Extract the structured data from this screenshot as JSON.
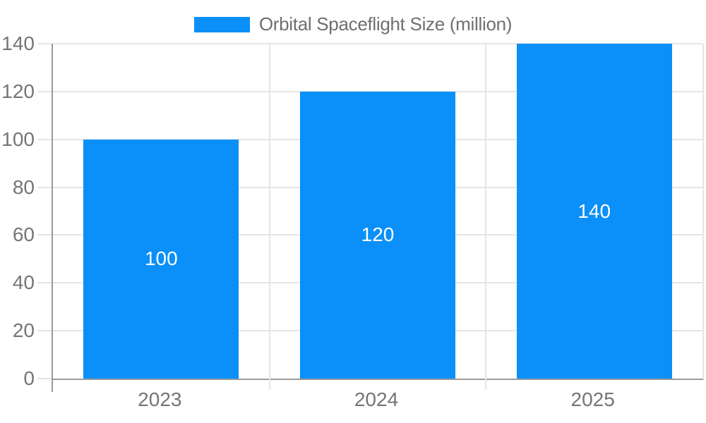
{
  "legend": {
    "label": "Orbital Spaceflight Size (million)"
  },
  "colors": {
    "bar": "#0a90f8",
    "axis_line": "#9a9a9a",
    "grid_line": "#e5e5e5",
    "tick_label": "#757575",
    "legend_text": "#6f6f6f",
    "bar_value_label": "#ffffff",
    "background": "#ffffff"
  },
  "chart_data": {
    "type": "bar",
    "title": "Orbital Spaceflight Size (million)",
    "series_name": "Orbital Spaceflight Size (million)",
    "categories": [
      "2023",
      "2024",
      "2025"
    ],
    "values": [
      100,
      120,
      140
    ],
    "data_labels": [
      "100",
      "120",
      "140"
    ],
    "xlabel": "",
    "ylabel": "",
    "ylim": [
      0,
      140
    ],
    "yticks": [
      0,
      20,
      40,
      60,
      80,
      100,
      120,
      140
    ],
    "grid": true,
    "legend_position": "top-center",
    "bar_slot_fill": 0.717
  }
}
